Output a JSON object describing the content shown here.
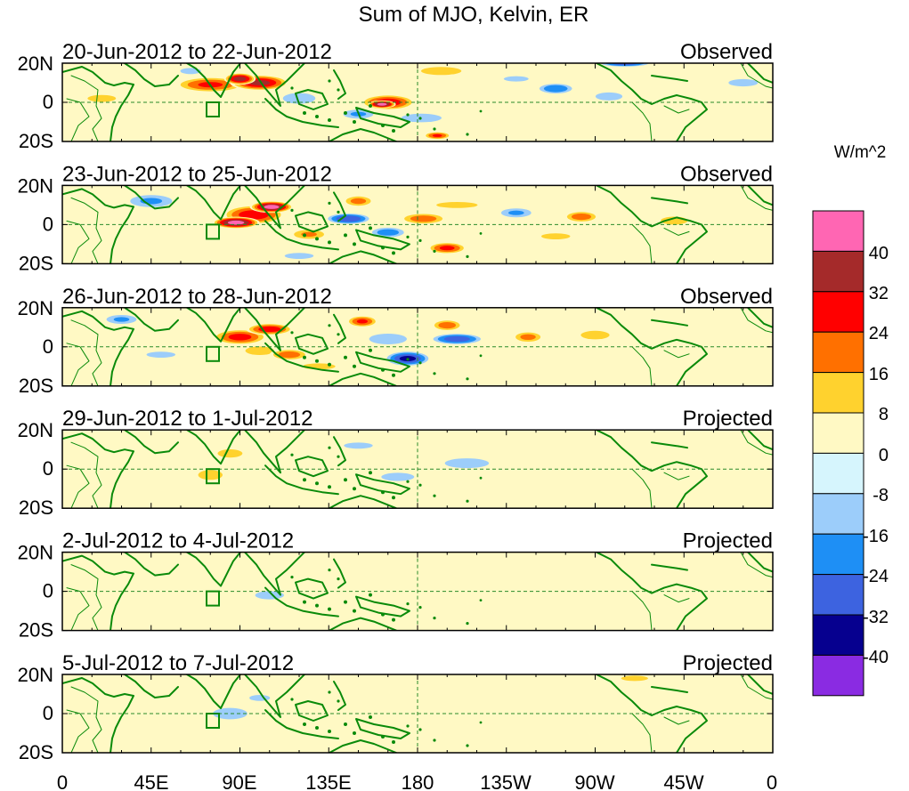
{
  "title": "Sum of MJO, Kelvin, ER",
  "panels": [
    {
      "date_range": "20-Jun-2012 to 22-Jun-2012",
      "status": "Observed"
    },
    {
      "date_range": "23-Jun-2012 to 25-Jun-2012",
      "status": "Observed"
    },
    {
      "date_range": "26-Jun-2012 to 28-Jun-2012",
      "status": "Observed"
    },
    {
      "date_range": "29-Jun-2012 to 1-Jul-2012",
      "status": "Projected"
    },
    {
      "date_range": "2-Jul-2012 to 4-Jul-2012",
      "status": "Projected"
    },
    {
      "date_range": "5-Jul-2012 to 7-Jul-2012",
      "status": "Projected"
    }
  ],
  "lat_labels": [
    "20N",
    "0",
    "20S"
  ],
  "lon_labels": [
    "0",
    "45E",
    "90E",
    "135E",
    "180",
    "135W",
    "90W",
    "45W",
    "0"
  ],
  "colorbar": {
    "units": "W/m^2",
    "tick_labels": [
      "40",
      "32",
      "24",
      "16",
      "8",
      "0",
      "-8",
      "-16",
      "-24",
      "-32",
      "-40"
    ],
    "colors": [
      "#ff66b3",
      "#a52a2a",
      "#ff0000",
      "#ff7000",
      "#ffd22e",
      "#fff9c4",
      "#d6f5fd",
      "#9ccdfa",
      "#1e8ff5",
      "#3d63e0",
      "#06008f",
      "#8a2be2"
    ]
  },
  "colors": {
    "coast": "#0a8a0a",
    "refline": "#2a8a2a"
  },
  "anomalies": [
    [
      [
        20,
        2,
        16,
        4,
        9
      ],
      [
        75,
        9,
        18,
        4,
        26
      ],
      [
        100,
        10,
        15,
        4,
        34
      ],
      [
        90,
        12,
        8,
        3,
        37
      ],
      [
        165,
        0,
        14,
        4,
        30
      ],
      [
        162,
        -1,
        7,
        2,
        44
      ],
      [
        190,
        -17,
        7,
        2,
        26
      ],
      [
        192,
        16,
        15,
        3,
        14
      ],
      [
        230,
        12,
        14,
        3,
        -9
      ],
      [
        250,
        7,
        10,
        3,
        -24
      ],
      [
        285,
        20,
        14,
        2,
        -30
      ],
      [
        277,
        3,
        10,
        3,
        -14
      ],
      [
        50,
        -8,
        14,
        4,
        8
      ],
      [
        120,
        2,
        12,
        4,
        -14
      ],
      [
        150,
        -6,
        10,
        3,
        -18
      ],
      [
        182,
        -8,
        14,
        3,
        -16
      ],
      [
        345,
        10,
        12,
        3,
        -12
      ],
      [
        325,
        0,
        18,
        5,
        4
      ],
      [
        65,
        16,
        10,
        3,
        -10
      ],
      [
        120,
        -14,
        20,
        3,
        8
      ]
    ],
    [
      [
        88,
        1,
        12,
        3,
        44
      ],
      [
        106,
        9,
        11,
        3,
        42
      ],
      [
        97,
        5,
        16,
        5,
        30
      ],
      [
        125,
        -5,
        10,
        3,
        18
      ],
      [
        150,
        12,
        8,
        3,
        20
      ],
      [
        183,
        3,
        12,
        3,
        22
      ],
      [
        195,
        -12,
        10,
        3,
        27
      ],
      [
        145,
        3,
        12,
        3,
        -32
      ],
      [
        165,
        -4,
        10,
        3,
        -22
      ],
      [
        230,
        6,
        10,
        3,
        -18
      ],
      [
        250,
        -6,
        14,
        3,
        10
      ],
      [
        263,
        4,
        9,
        3,
        22
      ],
      [
        310,
        2,
        10,
        3,
        14
      ],
      [
        45,
        12,
        14,
        4,
        -18
      ],
      [
        295,
        15,
        14,
        3,
        -8
      ],
      [
        200,
        10,
        20,
        3,
        10
      ],
      [
        335,
        -6,
        22,
        6,
        4
      ],
      [
        70,
        -12,
        16,
        4,
        6
      ],
      [
        120,
        -16,
        14,
        3,
        -10
      ]
    ],
    [
      [
        90,
        5,
        14,
        4,
        28
      ],
      [
        105,
        9,
        12,
        3,
        30
      ],
      [
        115,
        -4,
        10,
        3,
        22
      ],
      [
        100,
        -2,
        10,
        3,
        16
      ],
      [
        152,
        13,
        8,
        3,
        26
      ],
      [
        195,
        11,
        8,
        3,
        22
      ],
      [
        236,
        5,
        8,
        3,
        20
      ],
      [
        270,
        6,
        10,
        3,
        16
      ],
      [
        175,
        -6,
        12,
        4,
        -34
      ],
      [
        200,
        4,
        14,
        3,
        -30
      ],
      [
        165,
        4,
        14,
        4,
        -14
      ],
      [
        30,
        14,
        10,
        3,
        -18
      ],
      [
        50,
        -4,
        14,
        3,
        -10
      ],
      [
        130,
        -10,
        16,
        3,
        10
      ],
      [
        225,
        -8,
        20,
        3,
        8
      ],
      [
        325,
        6,
        18,
        3,
        -8
      ],
      [
        310,
        -10,
        24,
        5,
        4
      ],
      [
        80,
        -14,
        14,
        3,
        -6
      ]
    ],
    [
      [
        85,
        8,
        12,
        4,
        10
      ],
      [
        75,
        -3,
        10,
        4,
        12
      ],
      [
        105,
        -6,
        12,
        4,
        8
      ],
      [
        190,
        13,
        12,
        3,
        8
      ],
      [
        205,
        3,
        18,
        4,
        -12
      ],
      [
        170,
        -4,
        16,
        4,
        -10
      ],
      [
        150,
        12,
        14,
        3,
        -10
      ],
      [
        245,
        6,
        14,
        3,
        6
      ],
      [
        40,
        0,
        20,
        6,
        -8
      ],
      [
        330,
        8,
        20,
        4,
        -8
      ],
      [
        310,
        -10,
        22,
        5,
        4
      ],
      [
        120,
        -15,
        20,
        4,
        -8
      ]
    ],
    [
      [
        75,
        4,
        14,
        4,
        8
      ],
      [
        105,
        -2,
        14,
        4,
        -10
      ],
      [
        155,
        6,
        18,
        4,
        -8
      ],
      [
        210,
        0,
        22,
        5,
        6
      ],
      [
        280,
        10,
        18,
        4,
        -8
      ],
      [
        310,
        -6,
        20,
        6,
        4
      ],
      [
        45,
        -6,
        18,
        5,
        -8
      ],
      [
        130,
        -15,
        20,
        4,
        4
      ]
    ],
    [
      [
        85,
        0,
        12,
        4,
        -16
      ],
      [
        100,
        8,
        10,
        3,
        -10
      ],
      [
        70,
        10,
        10,
        3,
        8
      ],
      [
        140,
        12,
        18,
        4,
        -8
      ],
      [
        290,
        18,
        10,
        2,
        14
      ],
      [
        40,
        0,
        18,
        5,
        4
      ],
      [
        200,
        -4,
        26,
        5,
        4
      ],
      [
        310,
        -6,
        20,
        6,
        4
      ],
      [
        120,
        -14,
        20,
        4,
        6
      ]
    ]
  ]
}
